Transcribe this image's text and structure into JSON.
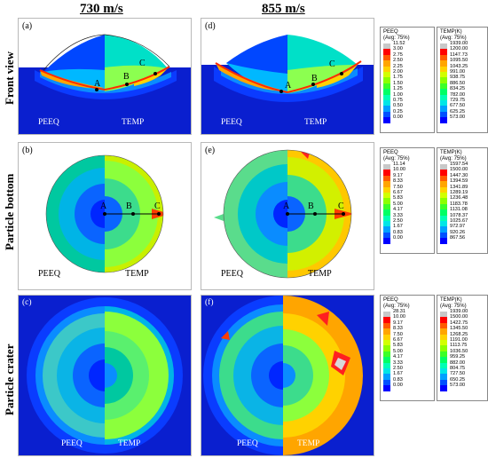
{
  "columns": [
    "730 m/s",
    "855 m/s"
  ],
  "rows": [
    "Front view",
    "Particle bottom",
    "Particle crater"
  ],
  "panels": [
    {
      "tag": "(a)",
      "left": "PEEQ",
      "right": "TEMP",
      "points": [
        "A",
        "B",
        "C"
      ]
    },
    {
      "tag": "(b)",
      "left": "PEEQ",
      "right": "TEMP",
      "points": [
        "A",
        "B",
        "C"
      ]
    },
    {
      "tag": "(c)",
      "left": "PEEQ",
      "right": "TEMP"
    },
    {
      "tag": "(d)",
      "left": "PEEQ",
      "right": "TEMP",
      "points": [
        "A",
        "B",
        "C"
      ]
    },
    {
      "tag": "(e)",
      "left": "PEEQ",
      "right": "TEMP",
      "points": [
        "A",
        "B",
        "C"
      ]
    },
    {
      "tag": "(f)",
      "left": "PEEQ",
      "right": "TEMP"
    }
  ],
  "colors": [
    "#c8c8c8",
    "#ff0000",
    "#ff5a00",
    "#ffa500",
    "#ffd200",
    "#d2ff00",
    "#8cff00",
    "#3cff28",
    "#00ff64",
    "#00ffb4",
    "#00e6e6",
    "#00a0ff",
    "#0050ff",
    "#0000ff"
  ],
  "legends": [
    {
      "title": "PEEQ\n(Avg: 75%)",
      "values": [
        "11.52",
        "3.00",
        "2.75",
        "2.50",
        "2.25",
        "2.00",
        "1.75",
        "1.50",
        "1.25",
        "1.00",
        "0.75",
        "0.50",
        "0.25",
        "0.00"
      ]
    },
    {
      "title": "TEMP(K)\n(Avg: 75%)",
      "values": [
        "1939.00",
        "1200.00",
        "1147.73",
        "1095.50",
        "1043.25",
        "991.00",
        "938.75",
        "886.50",
        "834.25",
        "782.00",
        "729.75",
        "677.50",
        "625.25",
        "573.00"
      ]
    },
    {
      "title": "PEEQ\n(Avg: 75%)",
      "values": [
        "11.14",
        "10.00",
        "9.17",
        "8.33",
        "7.50",
        "6.67",
        "5.83",
        "5.00",
        "4.17",
        "3.33",
        "2.50",
        "1.67",
        "0.83",
        "0.00"
      ]
    },
    {
      "title": "TEMP(K)\n(Avg: 75%)",
      "values": [
        "1597.54",
        "1500.00",
        "1447.30",
        "1394.59",
        "1341.89",
        "1289.19",
        "1236.48",
        "1183.78",
        "1131.08",
        "1078.37",
        "1025.67",
        "972.97",
        "920.26",
        "867.56"
      ]
    },
    {
      "title": "PEEQ\n(Avg: 75%)",
      "values": [
        "28.31",
        "10.00",
        "9.17",
        "8.33",
        "7.50",
        "6.67",
        "5.83",
        "5.00",
        "4.17",
        "3.33",
        "2.50",
        "1.67",
        "0.83",
        "0.00"
      ]
    },
    {
      "title": "TEMP(K)\n(Avg: 75%)",
      "values": [
        "1939.00",
        "1500.00",
        "1422.75",
        "1345.50",
        "1268.25",
        "1191.00",
        "1113.75",
        "1036.50",
        "959.25",
        "882.00",
        "804.75",
        "727.50",
        "650.25",
        "573.00"
      ]
    }
  ]
}
